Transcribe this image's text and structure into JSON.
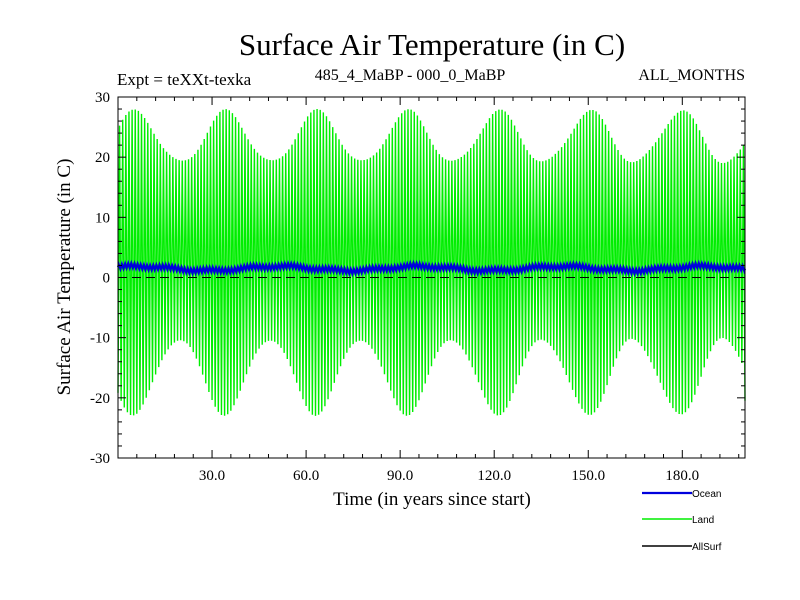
{
  "chart_data": {
    "type": "line",
    "title": "Surface Air Temperature (in C)",
    "subtitle_left": "Expt = teXXt-texka",
    "subtitle_center": "485_4_MaBP - 000_0_MaBP",
    "subtitle_right": "ALL_MONTHS",
    "xlabel": "Time (in years since start)",
    "ylabel": "Surface Air Temperature (in C)",
    "xlim": [
      0,
      200
    ],
    "ylim": [
      -30,
      30
    ],
    "x_ticks": [
      30,
      60,
      90,
      120,
      150,
      180
    ],
    "x_tick_labels": [
      "30.0",
      "60.0",
      "90.0",
      "120.0",
      "150.0",
      "180.0"
    ],
    "y_ticks": [
      -30,
      -20,
      -10,
      0,
      10,
      20,
      30
    ],
    "y_tick_labels": [
      "-30",
      "-20",
      "-10",
      "0",
      "10",
      "20",
      "30"
    ],
    "zero_line": {
      "value": 0,
      "style": "dashed"
    },
    "series": [
      {
        "name": "Ocean",
        "color": "#0000dd",
        "kind": "line",
        "mean": 1.5,
        "seasonal_amplitude": 0.4,
        "interannual_range": [
          0.6,
          2.4
        ]
      },
      {
        "name": "Land",
        "color": "#00ee00",
        "kind": "seasonal-oscillation",
        "cycles": 200,
        "summer_max_range": [
          19,
          27.5
        ],
        "winter_min_range": [
          -22.5,
          -10
        ],
        "longterm_period_years": 29
      },
      {
        "name": "AllSurf",
        "color": "#000000",
        "kind": "line"
      }
    ],
    "legend": {
      "placement": "bottom-right",
      "entries": [
        "Ocean",
        "Land",
        "AllSurf"
      ]
    }
  }
}
